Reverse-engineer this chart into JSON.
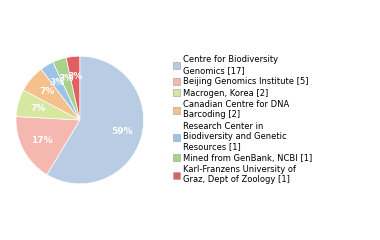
{
  "labels": [
    "Centre for Biodiversity\nGenomics [17]",
    "Beijing Genomics Institute [5]",
    "Macrogen, Korea [2]",
    "Canadian Centre for DNA\nBarcoding [2]",
    "Research Center in\nBiodiversity and Genetic\nResources [1]",
    "Mined from GenBank, NCBI [1]",
    "Karl-Franzens University of\nGraz, Dept of Zoology [1]"
  ],
  "values": [
    17,
    5,
    2,
    2,
    1,
    1,
    1
  ],
  "colors": [
    "#b8cce4",
    "#f4b8b0",
    "#d6e8a0",
    "#f4c08c",
    "#9dc3e6",
    "#a9d18e",
    "#e06060"
  ],
  "legend_fontsize": 6.0,
  "pct_fontsize": 6.5,
  "figsize": [
    3.8,
    2.4
  ],
  "dpi": 100
}
